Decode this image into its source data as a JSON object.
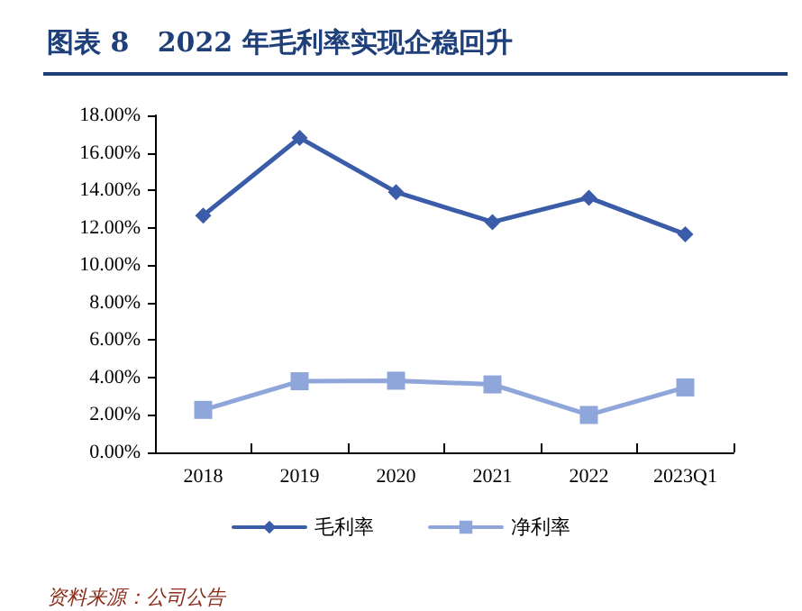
{
  "chart_data": {
    "type": "line",
    "title": "图表 8   2022 年毛利率实现企稳回升",
    "categories": [
      "2018",
      "2019",
      "2020",
      "2021",
      "2022",
      "2023Q1"
    ],
    "series": [
      {
        "name": "毛利率",
        "color": "#3b5ca8",
        "marker": "diamond",
        "values": [
          12.65,
          16.8,
          13.9,
          12.3,
          13.6,
          11.65
        ]
      },
      {
        "name": "净利率",
        "color": "#8fa6da",
        "marker": "square",
        "values": [
          2.27,
          3.8,
          3.83,
          3.63,
          2.0,
          3.47
        ]
      }
    ],
    "ylim": [
      0,
      18
    ],
    "yticks": [
      {
        "value": 0,
        "label": "0.00%"
      },
      {
        "value": 2,
        "label": "2.00%"
      },
      {
        "value": 4,
        "label": "4.00%"
      },
      {
        "value": 6,
        "label": "6.00%"
      },
      {
        "value": 8,
        "label": "8.00%"
      },
      {
        "value": 10,
        "label": "10.00%"
      },
      {
        "value": 12,
        "label": "12.00%"
      },
      {
        "value": 14,
        "label": "14.00%"
      },
      {
        "value": 16,
        "label": "16.00%"
      },
      {
        "value": 18,
        "label": "18.00%"
      }
    ],
    "grid": false,
    "legend": "bottom",
    "annotations": [
      "资料来源：公司公告"
    ]
  }
}
